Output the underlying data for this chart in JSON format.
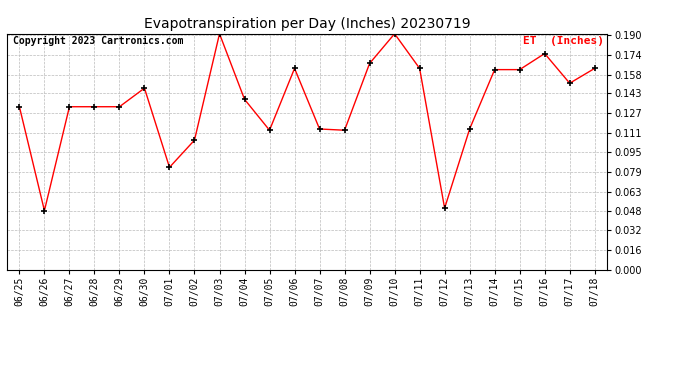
{
  "title": "Evapotranspiration per Day (Inches) 20230719",
  "copyright_text": "Copyright 2023 Cartronics.com",
  "legend_label": "ET  (Inches)",
  "dates": [
    "06/25",
    "06/26",
    "06/27",
    "06/28",
    "06/29",
    "06/30",
    "07/01",
    "07/02",
    "07/03",
    "07/04",
    "07/05",
    "07/06",
    "07/07",
    "07/08",
    "07/09",
    "07/10",
    "07/11",
    "07/12",
    "07/13",
    "07/14",
    "07/15",
    "07/16",
    "07/17",
    "07/18"
  ],
  "values": [
    0.132,
    0.048,
    0.132,
    0.132,
    0.132,
    0.147,
    0.083,
    0.105,
    0.191,
    0.138,
    0.113,
    0.163,
    0.114,
    0.113,
    0.167,
    0.191,
    0.163,
    0.05,
    0.114,
    0.162,
    0.162,
    0.175,
    0.151,
    0.163
  ],
  "line_color": "#ff0000",
  "marker_color": "#000000",
  "grid_color": "#bbbbbb",
  "background_color": "#ffffff",
  "legend_color": "#ff0000",
  "copyright_color": "#000000",
  "title_fontsize": 10,
  "copyright_fontsize": 7,
  "legend_fontsize": 8,
  "tick_fontsize": 7,
  "ylim": [
    0.0,
    0.19
  ],
  "yticks": [
    0.0,
    0.016,
    0.032,
    0.048,
    0.063,
    0.079,
    0.095,
    0.111,
    0.127,
    0.143,
    0.158,
    0.174,
    0.19
  ]
}
